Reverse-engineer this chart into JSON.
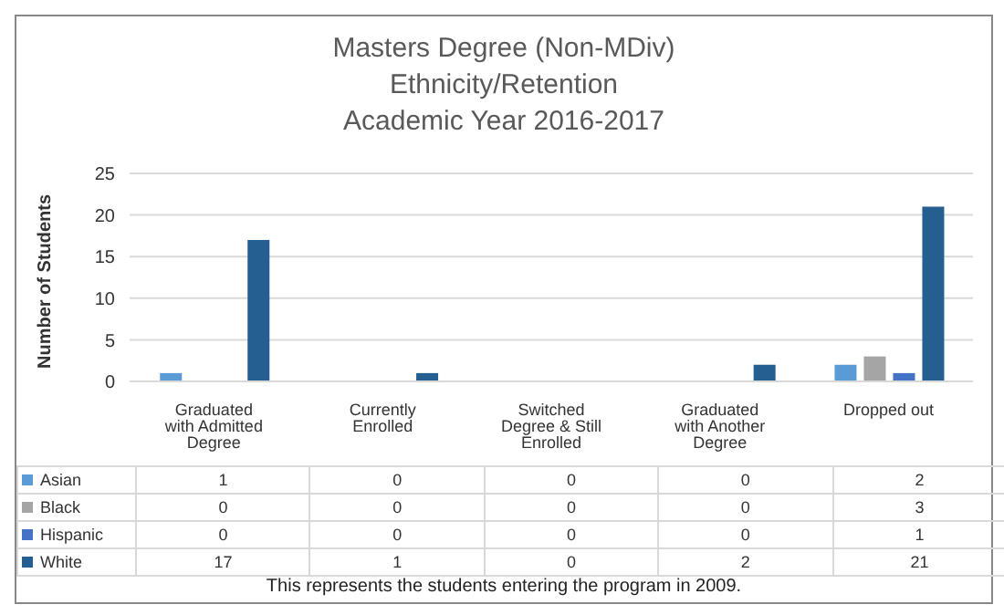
{
  "chart_data": {
    "type": "bar",
    "title": "Masters Degree (Non-MDiv)\nEthnicity/Retention\nAcademic Year 2016-2017",
    "ylabel": "Number of Students",
    "categories": [
      "Graduated with Admitted Degree",
      "Currently Enrolled",
      "Switched Degree & Still Enrolled",
      "Graduated with Another Degree",
      "Dropped out"
    ],
    "series": [
      {
        "name": "Asian",
        "color": "#5b9bd5",
        "values": [
          1,
          0,
          0,
          0,
          2
        ]
      },
      {
        "name": "Black",
        "color": "#a5a5a5",
        "values": [
          0,
          0,
          0,
          0,
          3
        ]
      },
      {
        "name": "Hispanic",
        "color": "#4472c4",
        "values": [
          0,
          0,
          0,
          0,
          1
        ]
      },
      {
        "name": "White",
        "color": "#255e91",
        "values": [
          17,
          1,
          0,
          2,
          21
        ]
      }
    ],
    "ylim": [
      0,
      25
    ],
    "yticks": [
      0,
      5,
      10,
      15,
      20,
      25
    ],
    "grid": "y",
    "legend": "bottom",
    "data_labels": true,
    "annotations": [
      "This represents the students entering the program in 2009."
    ]
  }
}
